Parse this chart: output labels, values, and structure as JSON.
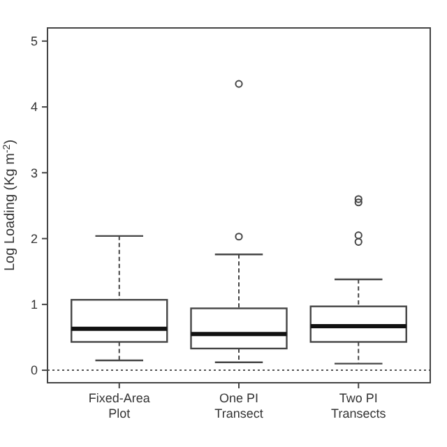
{
  "chart_data": {
    "type": "box",
    "ylabel": "Log Loading (Kg m$^{-2}$)",
    "categories": [
      "Fixed-Area\nPlot",
      "One PI\nTransect",
      "Two PI\nTransects"
    ],
    "boxes": [
      {
        "low": 0.15,
        "q1": 0.43,
        "median": 0.63,
        "q3": 1.07,
        "high": 2.04
      },
      {
        "low": 0.12,
        "q1": 0.33,
        "median": 0.55,
        "q3": 0.94,
        "high": 1.76,
        "outliers": [
          4.35,
          2.03
        ]
      },
      {
        "low": 0.1,
        "q1": 0.43,
        "median": 0.67,
        "q3": 0.97,
        "high": 1.38,
        "outliers": [
          2.6,
          2.55,
          2.05,
          1.95
        ]
      }
    ],
    "ylim": [
      -0.19,
      5.2
    ],
    "yticks": [
      0,
      1,
      2,
      3,
      4,
      5
    ],
    "ref_lines": [
      {
        "axis": "y",
        "value": 0,
        "line_style": "dotted",
        "color": "#555555"
      }
    ]
  }
}
